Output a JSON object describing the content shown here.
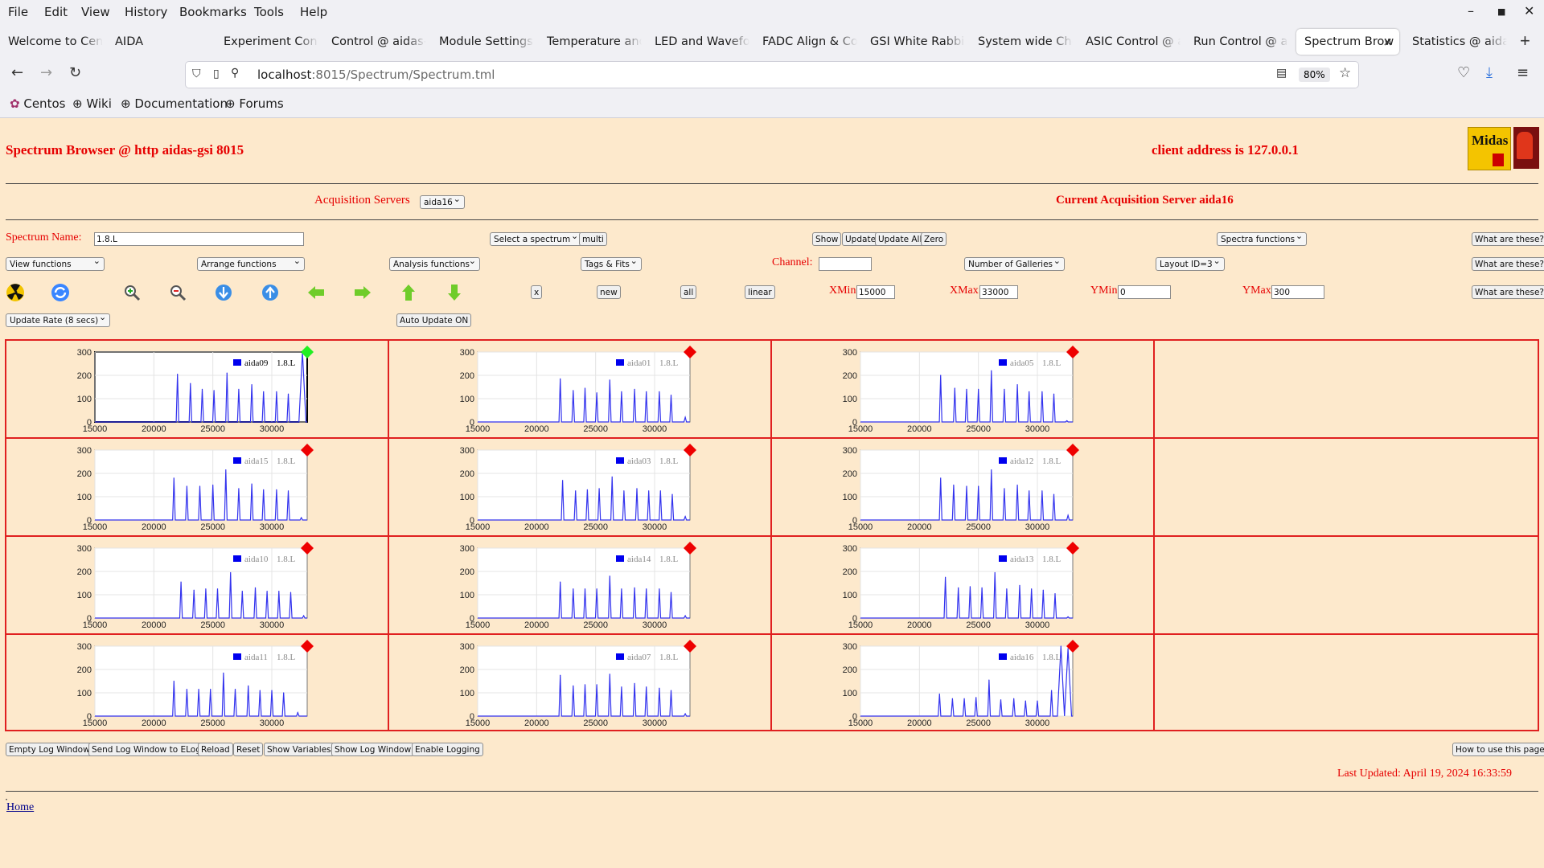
{
  "browser": {
    "menu": [
      "File",
      "Edit",
      "View",
      "History",
      "Bookmarks",
      "Tools",
      "Help"
    ],
    "tabs": [
      {
        "label": "Welcome to Cent",
        "active": false
      },
      {
        "label": "AIDA",
        "active": false
      },
      {
        "label": "Experiment Contr",
        "active": false
      },
      {
        "label": "Control @ aidas-",
        "active": false
      },
      {
        "label": "Module Settings",
        "active": false
      },
      {
        "label": "Temperature and",
        "active": false
      },
      {
        "label": "LED and Wavefor",
        "active": false
      },
      {
        "label": "FADC Align & Co",
        "active": false
      },
      {
        "label": "GSI White Rabbit",
        "active": false
      },
      {
        "label": "System wide Che",
        "active": false
      },
      {
        "label": "ASIC Control @ a",
        "active": false
      },
      {
        "label": "Run Control @ ai",
        "active": false
      },
      {
        "label": "Spectrum Brow",
        "active": true
      },
      {
        "label": "Statistics @ aidas",
        "active": false
      }
    ],
    "url_host": "localhost",
    "url_path": ":8015/Spectrum/Spectrum.tml",
    "zoom": "80%",
    "bookmarks": [
      "Centos",
      "Wiki",
      "Documentation",
      "Forums"
    ]
  },
  "page": {
    "title": "Spectrum Browser @ http aidas-gsi 8015",
    "client_address": "client address is 127.0.0.1",
    "logo_text": "Midas",
    "acq_label": "Acquisition Servers",
    "acq_select": "aida16",
    "current_acq": "Current Acquisition Server aida16",
    "spectrum_name_label": "Spectrum Name:",
    "spectrum_name": "1.8.L",
    "select_spectrum": "Select a spectrum",
    "multi": "multi",
    "show": "Show",
    "update": "Update",
    "update_all": "Update All",
    "zero": "Zero",
    "spectra_functions": "Spectra functions",
    "what_are_these": "What are these?",
    "view_functions": "View functions",
    "arrange_functions": "Arrange functions",
    "analysis_functions": "Analysis functions",
    "tags_fits": "Tags & Fits",
    "channel_label": "Channel:",
    "channel_value": "",
    "num_galleries": "Number of Galleries",
    "layout": "Layout ID=3",
    "btn_x": "x",
    "btn_new": "new",
    "btn_all": "all",
    "btn_linear": "linear",
    "xmin_label": "XMin",
    "xmin": "15000",
    "xmax_label": "XMax",
    "xmax": "33000",
    "ymin_label": "YMin",
    "ymin": "0",
    "ymax_label": "YMax",
    "ymax": "300",
    "update_rate": "Update Rate (8 secs)",
    "auto_update": "Auto Update ON",
    "bottom_buttons": [
      "Empty Log Window",
      "Send Log Window to ELog",
      "Reload",
      "Reset",
      "Show Variables",
      "Show Log Window",
      "Enable Logging"
    ],
    "how_to_use": "How to use this page",
    "last_updated": "Last Updated: April 19, 2024 16:33:59",
    "home": "Home"
  },
  "colors": {
    "accent_red": "#e60000",
    "page_bg": "#fde9cc",
    "series_blue": "#3333ee",
    "marker_selected": "#22ee22",
    "marker_normal": "#ee0000"
  },
  "chart_data": {
    "type": "line",
    "xlim": [
      15000,
      33000
    ],
    "ylim": [
      0,
      300
    ],
    "xticks": [
      15000,
      20000,
      25000,
      30000
    ],
    "yticks": [
      0,
      100,
      200,
      300
    ],
    "legend_suffix": "1.8.L",
    "spectra": [
      {
        "name": "aida09",
        "row": 0,
        "col": 0,
        "selected": true,
        "peaks": [
          [
            22000,
            205
          ],
          [
            23100,
            165
          ],
          [
            24100,
            140
          ],
          [
            25100,
            135
          ],
          [
            26200,
            210
          ],
          [
            27200,
            140
          ],
          [
            28300,
            160
          ],
          [
            29300,
            130
          ],
          [
            30400,
            130
          ],
          [
            31400,
            120
          ],
          [
            32600,
            300
          ]
        ]
      },
      {
        "name": "aida01",
        "row": 0,
        "col": 1,
        "selected": false,
        "peaks": [
          [
            22000,
            185
          ],
          [
            23100,
            135
          ],
          [
            24100,
            145
          ],
          [
            25100,
            125
          ],
          [
            26200,
            180
          ],
          [
            27200,
            130
          ],
          [
            28300,
            140
          ],
          [
            29300,
            130
          ],
          [
            30400,
            130
          ],
          [
            31400,
            115
          ],
          [
            32600,
            20
          ]
        ]
      },
      {
        "name": "aida05",
        "row": 0,
        "col": 2,
        "selected": false,
        "peaks": [
          [
            21800,
            200
          ],
          [
            23000,
            145
          ],
          [
            24000,
            140
          ],
          [
            25000,
            140
          ],
          [
            26100,
            220
          ],
          [
            27200,
            140
          ],
          [
            28300,
            160
          ],
          [
            29300,
            130
          ],
          [
            30400,
            130
          ],
          [
            31400,
            120
          ],
          [
            32500,
            5
          ]
        ]
      },
      {
        "name": "aida15",
        "row": 1,
        "col": 0,
        "selected": false,
        "peaks": [
          [
            21700,
            180
          ],
          [
            22800,
            145
          ],
          [
            23900,
            145
          ],
          [
            25000,
            150
          ],
          [
            26100,
            215
          ],
          [
            27200,
            135
          ],
          [
            28300,
            155
          ],
          [
            29300,
            130
          ],
          [
            30400,
            130
          ],
          [
            31400,
            125
          ],
          [
            32500,
            10
          ]
        ]
      },
      {
        "name": "aida03",
        "row": 1,
        "col": 1,
        "selected": false,
        "peaks": [
          [
            22200,
            170
          ],
          [
            23300,
            125
          ],
          [
            24300,
            130
          ],
          [
            25300,
            135
          ],
          [
            26400,
            185
          ],
          [
            27400,
            125
          ],
          [
            28500,
            135
          ],
          [
            29500,
            125
          ],
          [
            30500,
            125
          ],
          [
            31500,
            110
          ],
          [
            32600,
            15
          ]
        ]
      },
      {
        "name": "aida12",
        "row": 1,
        "col": 2,
        "selected": false,
        "peaks": [
          [
            21800,
            180
          ],
          [
            22900,
            150
          ],
          [
            24000,
            145
          ],
          [
            25000,
            145
          ],
          [
            26100,
            215
          ],
          [
            27200,
            135
          ],
          [
            28300,
            150
          ],
          [
            29300,
            125
          ],
          [
            30400,
            125
          ],
          [
            31400,
            110
          ],
          [
            32600,
            20
          ]
        ]
      },
      {
        "name": "aida10",
        "row": 2,
        "col": 0,
        "selected": false,
        "peaks": [
          [
            22300,
            155
          ],
          [
            23400,
            120
          ],
          [
            24400,
            125
          ],
          [
            25400,
            125
          ],
          [
            26500,
            195
          ],
          [
            27500,
            115
          ],
          [
            28600,
            130
          ],
          [
            29600,
            115
          ],
          [
            30600,
            115
          ],
          [
            31600,
            110
          ],
          [
            32700,
            10
          ]
        ]
      },
      {
        "name": "aida14",
        "row": 2,
        "col": 1,
        "selected": false,
        "peaks": [
          [
            22000,
            155
          ],
          [
            23100,
            125
          ],
          [
            24100,
            125
          ],
          [
            25100,
            125
          ],
          [
            26200,
            180
          ],
          [
            27200,
            125
          ],
          [
            28300,
            130
          ],
          [
            29300,
            125
          ],
          [
            30400,
            125
          ],
          [
            31400,
            110
          ],
          [
            32600,
            10
          ]
        ]
      },
      {
        "name": "aida13",
        "row": 2,
        "col": 2,
        "selected": false,
        "peaks": [
          [
            22200,
            175
          ],
          [
            23300,
            130
          ],
          [
            24300,
            135
          ],
          [
            25300,
            130
          ],
          [
            26400,
            195
          ],
          [
            27400,
            125
          ],
          [
            28500,
            140
          ],
          [
            29500,
            125
          ],
          [
            30500,
            120
          ],
          [
            31500,
            105
          ],
          [
            32600,
            5
          ]
        ]
      },
      {
        "name": "aida11",
        "row": 3,
        "col": 0,
        "selected": false,
        "peaks": [
          [
            21700,
            150
          ],
          [
            22800,
            115
          ],
          [
            23800,
            115
          ],
          [
            24800,
            115
          ],
          [
            25900,
            185
          ],
          [
            26900,
            115
          ],
          [
            28000,
            130
          ],
          [
            29000,
            110
          ],
          [
            30000,
            110
          ],
          [
            31000,
            100
          ],
          [
            32200,
            15
          ]
        ]
      },
      {
        "name": "aida07",
        "row": 3,
        "col": 1,
        "selected": false,
        "peaks": [
          [
            22000,
            175
          ],
          [
            23100,
            130
          ],
          [
            24100,
            135
          ],
          [
            25100,
            135
          ],
          [
            26200,
            180
          ],
          [
            27200,
            125
          ],
          [
            28300,
            140
          ],
          [
            29300,
            125
          ],
          [
            30400,
            120
          ],
          [
            31400,
            110
          ],
          [
            32600,
            10
          ]
        ]
      },
      {
        "name": "aida16",
        "row": 3,
        "col": 2,
        "selected": false,
        "peaks": [
          [
            21700,
            95
          ],
          [
            22800,
            75
          ],
          [
            23800,
            75
          ],
          [
            24800,
            80
          ],
          [
            25900,
            155
          ],
          [
            26900,
            70
          ],
          [
            28000,
            75
          ],
          [
            29000,
            65
          ],
          [
            30000,
            65
          ],
          [
            31200,
            110
          ],
          [
            32000,
            300
          ],
          [
            32600,
            290
          ]
        ]
      }
    ]
  }
}
